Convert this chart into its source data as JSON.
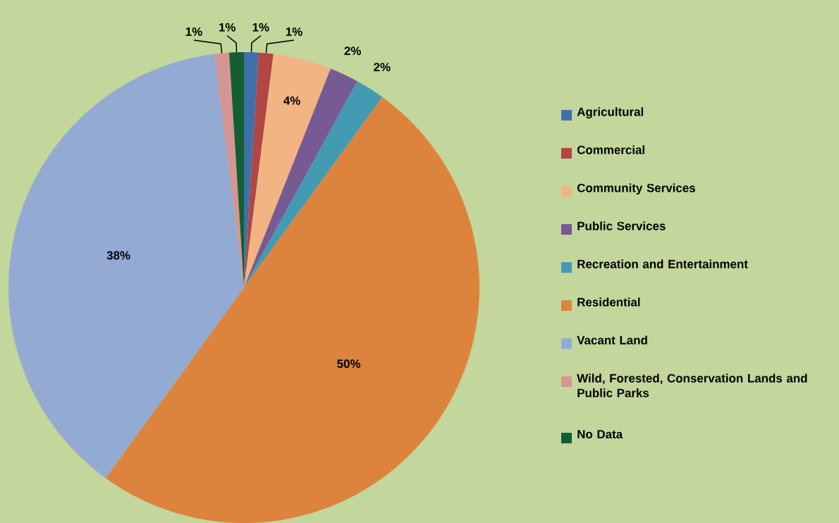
{
  "chart_data": {
    "type": "pie",
    "categories": [
      "Agricultural",
      "Commercial",
      "Community Services",
      "Public Services",
      "Recreation and Entertainment",
      "Residential",
      "Vacant Land",
      "Wild, Forested, Conservation Lands and Public Parks",
      "No Data"
    ],
    "values": [
      1,
      1,
      4,
      2,
      2,
      50,
      38,
      1,
      1
    ],
    "value_labels": [
      "1%",
      "1%",
      "4%",
      "2%",
      "2%",
      "50%",
      "38%",
      "1%",
      "1%"
    ],
    "colors": [
      "#3f71a8",
      "#b04645",
      "#f2b483",
      "#775a93",
      "#429bb2",
      "#dc843d",
      "#93abd3",
      "#d59594",
      "#135f33"
    ],
    "legend": "right"
  }
}
